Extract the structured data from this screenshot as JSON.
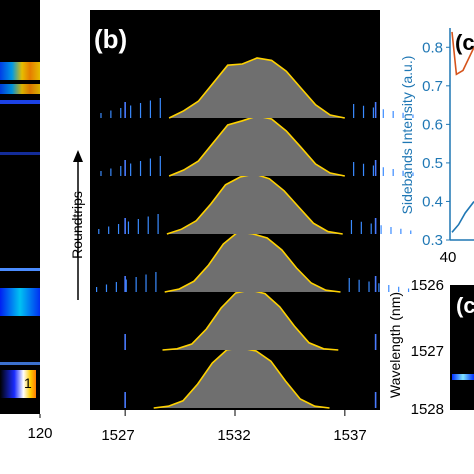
{
  "colors": {
    "axis_blue": "#1f77b4",
    "curve_orange": "#d6541c",
    "panel_black": "#000000",
    "fill_gray": "#6f6f6f"
  },
  "panel_a": {
    "xticks": [
      "120"
    ],
    "colorbar_label": "1"
  },
  "panel_b": {
    "label": "(b)",
    "ylabel": "Roundtrips",
    "xticks": [
      "1527",
      "1532",
      "1537"
    ]
  },
  "panel_c": {
    "label": "(c",
    "ylabel": "Sidebands Intensity (a.u.)",
    "yticks": [
      "0.8",
      "0.7",
      "0.6",
      "0.5",
      "0.4",
      "0.3"
    ],
    "xticks": [
      "40"
    ]
  },
  "panel_d": {
    "label": "(c",
    "ylabel": "Wavelength (nm)",
    "yticks": [
      "1526",
      "1527",
      "1528"
    ]
  },
  "chart_data": [
    {
      "type": "heatmap",
      "panel": "a",
      "x_ticks": [
        120
      ],
      "colorbar_max": 1,
      "bright_rows_y": [
        75,
        98,
        155,
        270,
        303,
        365
      ]
    },
    {
      "type": "area",
      "panel": "b",
      "x_ticks": [
        1527,
        1532,
        1537
      ],
      "xlim": [
        1525.4,
        1538.6
      ],
      "traces": [
        {
          "offset": 0,
          "center": 1532.3,
          "sidebands": false,
          "values": [
            0.0,
            0.03,
            0.12,
            0.4,
            0.75,
            0.97,
            1.0,
            0.95,
            0.78,
            0.45,
            0.15,
            0.03,
            0.0
          ]
        },
        {
          "offset": 1,
          "center": 1532.7,
          "sidebands": false,
          "values": [
            0.0,
            0.02,
            0.1,
            0.35,
            0.7,
            0.95,
            1.0,
            0.94,
            0.72,
            0.4,
            0.12,
            0.02,
            0.0
          ]
        },
        {
          "offset": 2,
          "center": 1532.8,
          "sidebands": true,
          "values": [
            0.0,
            0.05,
            0.18,
            0.45,
            0.8,
            1.0,
            0.97,
            0.9,
            0.7,
            0.4,
            0.15,
            0.03,
            0.0
          ]
        },
        {
          "offset": 3,
          "center": 1532.9,
          "sidebands": true,
          "values": [
            0.0,
            0.08,
            0.22,
            0.5,
            0.82,
            0.95,
            1.0,
            0.92,
            0.72,
            0.45,
            0.18,
            0.04,
            0.0
          ]
        },
        {
          "offset": 4,
          "center": 1533.0,
          "sidebands": true,
          "values": [
            0.0,
            0.1,
            0.25,
            0.55,
            0.85,
            0.92,
            1.0,
            0.95,
            0.75,
            0.48,
            0.2,
            0.05,
            0.0
          ]
        },
        {
          "offset": 5,
          "center": 1533.0,
          "sidebands": true,
          "values": [
            0.0,
            0.12,
            0.28,
            0.58,
            0.88,
            0.9,
            1.0,
            0.96,
            0.78,
            0.5,
            0.22,
            0.05,
            0.0
          ]
        }
      ],
      "edge_lines_x": [
        1527.0,
        1538.4
      ]
    },
    {
      "type": "line",
      "panel": "c",
      "ylim": [
        0.3,
        0.85
      ],
      "x_ticks": [
        40
      ],
      "series": [
        {
          "color": "orange",
          "x": [
            0,
            0.2,
            0.5,
            1.0
          ],
          "y": [
            0.84,
            0.73,
            0.74,
            0.8
          ]
        },
        {
          "color": "blue",
          "x": [
            0,
            0.3,
            0.6,
            1.0
          ],
          "y": [
            0.32,
            0.34,
            0.37,
            0.4
          ]
        }
      ]
    },
    {
      "type": "heatmap",
      "panel": "d",
      "ylim": [
        1528,
        1526
      ],
      "y_ticks": [
        1526,
        1527,
        1528
      ],
      "bright_wavelength": 1527.0
    }
  ]
}
